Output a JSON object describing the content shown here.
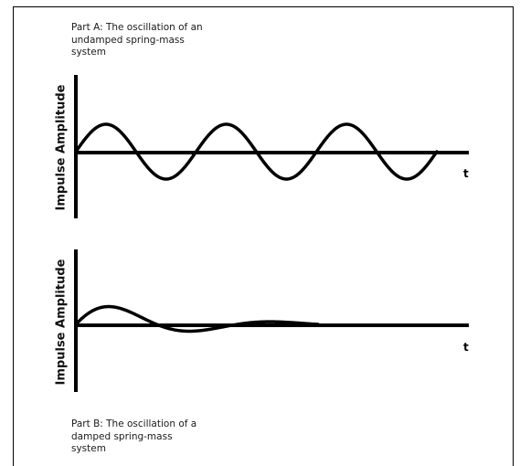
{
  "part_a": {
    "caption": "Part A: The oscillation of an\nundamped spring-mass\nsystem",
    "ylabel": "Impulse Amplitude",
    "xlabel": "t"
  },
  "part_b": {
    "caption": "Part B: The oscillation of a\ndamped spring-mass\nsystem",
    "ylabel": "Impulse Amplitude",
    "xlabel": "t"
  },
  "style": {
    "line_color": "#000000",
    "text_color": "#1a1a1a"
  }
}
